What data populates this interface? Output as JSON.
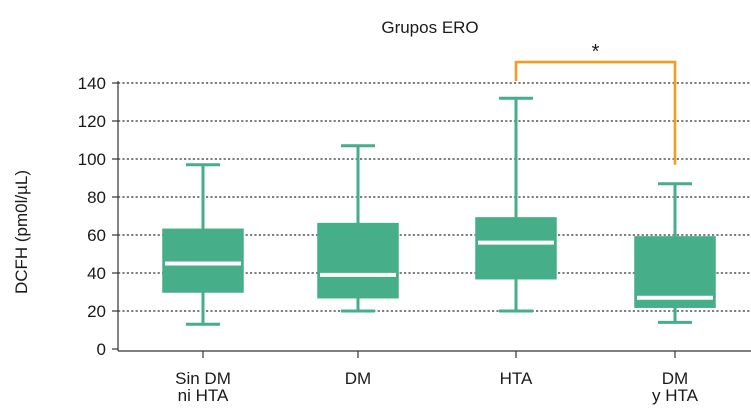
{
  "colors": {
    "box_fill": "#46AE89",
    "box_stroke": "#46AE89",
    "median": "#ffffff",
    "grid": "#333333",
    "axis": "#333333",
    "bracket": "#F39C1F"
  },
  "chart_data": {
    "type": "boxplot",
    "title": "Grupos ERO",
    "ylabel": "DCFH (pm0l/µL)",
    "xlabel": "",
    "ylim": [
      0,
      140
    ],
    "yticks": [
      0,
      20,
      40,
      60,
      80,
      100,
      120,
      140
    ],
    "grid": true,
    "categories": [
      [
        "Sin DM",
        "ni HTA"
      ],
      [
        "DM"
      ],
      [
        "HTA"
      ],
      [
        "DM",
        "y HTA"
      ]
    ],
    "boxes": [
      {
        "whisker_low": 13,
        "q1": 30,
        "median": 45,
        "q3": 63,
        "whisker_high": 97
      },
      {
        "whisker_low": 20,
        "q1": 27,
        "median": 39,
        "q3": 66,
        "whisker_high": 107
      },
      {
        "whisker_low": 20,
        "q1": 37,
        "median": 56,
        "q3": 69,
        "whisker_high": 132
      },
      {
        "whisker_low": 14,
        "q1": 22,
        "median": 27,
        "q3": 59,
        "whisker_high": 87
      }
    ],
    "significance": {
      "from": 2,
      "to": 3,
      "label": "*",
      "bar_y": 151,
      "left_end_y": 141,
      "right_end_y": 97
    }
  }
}
